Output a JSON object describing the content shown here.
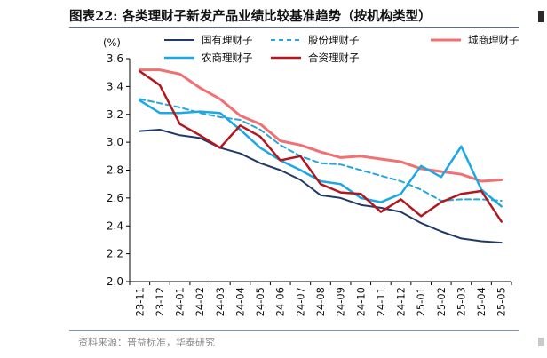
{
  "page": {
    "title": "图表22:  各类理财子新发产品业绩比较基准趋势（按机构类型）",
    "source": "资料来源：普益标准，华泰研究"
  },
  "chart_data": {
    "type": "line",
    "unit_label": "(%)",
    "categories": [
      "23-11",
      "23-12",
      "24-01",
      "24-02",
      "24-03",
      "24-04",
      "24-05",
      "24-06",
      "24-07",
      "24-08",
      "24-09",
      "24-10",
      "24-11",
      "24-12",
      "25-01",
      "25-02",
      "25-03",
      "25-04",
      "25-05"
    ],
    "ylim": [
      2.0,
      3.6
    ],
    "yticks": [
      "2.0",
      "2.2",
      "2.4",
      "2.6",
      "2.8",
      "3.0",
      "3.2",
      "3.4",
      "3.6"
    ],
    "grid": false,
    "legend": "top",
    "series": [
      {
        "name": "国有理财子",
        "color": "#1f3a68",
        "dash": "none",
        "width": 2,
        "values": [
          3.08,
          3.09,
          3.05,
          3.03,
          2.96,
          2.92,
          2.85,
          2.8,
          2.73,
          2.62,
          2.6,
          2.55,
          2.53,
          2.5,
          2.42,
          2.36,
          2.31,
          2.29,
          2.28
        ]
      },
      {
        "name": "股份理财子",
        "color": "#26a6d9",
        "dash": "6,4",
        "width": 2,
        "values": [
          3.31,
          3.28,
          3.25,
          3.21,
          3.18,
          3.16,
          3.09,
          2.98,
          2.9,
          2.85,
          2.84,
          2.8,
          2.76,
          2.72,
          2.66,
          2.58,
          2.59,
          2.59,
          2.58
        ]
      },
      {
        "name": "城商理财子",
        "color": "#f26f72",
        "dash": "none",
        "width": 3,
        "values": [
          3.52,
          3.52,
          3.49,
          3.39,
          3.31,
          3.19,
          3.13,
          3.01,
          2.98,
          2.93,
          2.89,
          2.9,
          2.88,
          2.86,
          2.81,
          2.79,
          2.77,
          2.72,
          2.73
        ]
      },
      {
        "name": "农商理财子",
        "color": "#1ba8e4",
        "dash": "none",
        "width": 2.5,
        "values": [
          3.3,
          3.21,
          3.21,
          3.22,
          3.21,
          3.09,
          2.96,
          2.87,
          2.8,
          2.72,
          2.7,
          2.6,
          2.57,
          2.63,
          2.83,
          2.75,
          2.97,
          2.66,
          2.54
        ]
      },
      {
        "name": "合资理财子",
        "color": "#b3171d",
        "dash": "none",
        "width": 2.5,
        "values": [
          3.51,
          3.41,
          3.13,
          3.05,
          2.96,
          3.12,
          3.04,
          2.87,
          2.9,
          2.7,
          2.64,
          2.63,
          2.5,
          2.59,
          2.47,
          2.57,
          2.63,
          2.65,
          2.43
        ]
      }
    ]
  }
}
